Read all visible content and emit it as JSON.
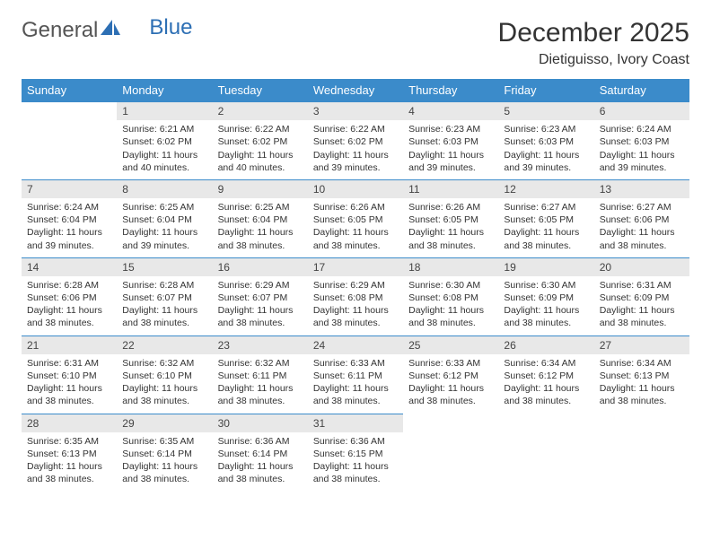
{
  "logo": {
    "general": "General",
    "blue": "Blue"
  },
  "title": "December 2025",
  "location": "Dietiguisso, Ivory Coast",
  "colors": {
    "header_bg": "#3b8bca",
    "header_fg": "#ffffff",
    "daynum_bg": "#e8e8e8",
    "rule": "#3b8bca",
    "text": "#333333",
    "logo_gray": "#555555",
    "logo_blue": "#2d6fb4"
  },
  "weekday_labels": [
    "Sunday",
    "Monday",
    "Tuesday",
    "Wednesday",
    "Thursday",
    "Friday",
    "Saturday"
  ],
  "weeks": [
    [
      {
        "num": "",
        "sunrise": "",
        "sunset": "",
        "daylight": ""
      },
      {
        "num": "1",
        "sunrise": "Sunrise: 6:21 AM",
        "sunset": "Sunset: 6:02 PM",
        "daylight": "Daylight: 11 hours and 40 minutes."
      },
      {
        "num": "2",
        "sunrise": "Sunrise: 6:22 AM",
        "sunset": "Sunset: 6:02 PM",
        "daylight": "Daylight: 11 hours and 40 minutes."
      },
      {
        "num": "3",
        "sunrise": "Sunrise: 6:22 AM",
        "sunset": "Sunset: 6:02 PM",
        "daylight": "Daylight: 11 hours and 39 minutes."
      },
      {
        "num": "4",
        "sunrise": "Sunrise: 6:23 AM",
        "sunset": "Sunset: 6:03 PM",
        "daylight": "Daylight: 11 hours and 39 minutes."
      },
      {
        "num": "5",
        "sunrise": "Sunrise: 6:23 AM",
        "sunset": "Sunset: 6:03 PM",
        "daylight": "Daylight: 11 hours and 39 minutes."
      },
      {
        "num": "6",
        "sunrise": "Sunrise: 6:24 AM",
        "sunset": "Sunset: 6:03 PM",
        "daylight": "Daylight: 11 hours and 39 minutes."
      }
    ],
    [
      {
        "num": "7",
        "sunrise": "Sunrise: 6:24 AM",
        "sunset": "Sunset: 6:04 PM",
        "daylight": "Daylight: 11 hours and 39 minutes."
      },
      {
        "num": "8",
        "sunrise": "Sunrise: 6:25 AM",
        "sunset": "Sunset: 6:04 PM",
        "daylight": "Daylight: 11 hours and 39 minutes."
      },
      {
        "num": "9",
        "sunrise": "Sunrise: 6:25 AM",
        "sunset": "Sunset: 6:04 PM",
        "daylight": "Daylight: 11 hours and 38 minutes."
      },
      {
        "num": "10",
        "sunrise": "Sunrise: 6:26 AM",
        "sunset": "Sunset: 6:05 PM",
        "daylight": "Daylight: 11 hours and 38 minutes."
      },
      {
        "num": "11",
        "sunrise": "Sunrise: 6:26 AM",
        "sunset": "Sunset: 6:05 PM",
        "daylight": "Daylight: 11 hours and 38 minutes."
      },
      {
        "num": "12",
        "sunrise": "Sunrise: 6:27 AM",
        "sunset": "Sunset: 6:05 PM",
        "daylight": "Daylight: 11 hours and 38 minutes."
      },
      {
        "num": "13",
        "sunrise": "Sunrise: 6:27 AM",
        "sunset": "Sunset: 6:06 PM",
        "daylight": "Daylight: 11 hours and 38 minutes."
      }
    ],
    [
      {
        "num": "14",
        "sunrise": "Sunrise: 6:28 AM",
        "sunset": "Sunset: 6:06 PM",
        "daylight": "Daylight: 11 hours and 38 minutes."
      },
      {
        "num": "15",
        "sunrise": "Sunrise: 6:28 AM",
        "sunset": "Sunset: 6:07 PM",
        "daylight": "Daylight: 11 hours and 38 minutes."
      },
      {
        "num": "16",
        "sunrise": "Sunrise: 6:29 AM",
        "sunset": "Sunset: 6:07 PM",
        "daylight": "Daylight: 11 hours and 38 minutes."
      },
      {
        "num": "17",
        "sunrise": "Sunrise: 6:29 AM",
        "sunset": "Sunset: 6:08 PM",
        "daylight": "Daylight: 11 hours and 38 minutes."
      },
      {
        "num": "18",
        "sunrise": "Sunrise: 6:30 AM",
        "sunset": "Sunset: 6:08 PM",
        "daylight": "Daylight: 11 hours and 38 minutes."
      },
      {
        "num": "19",
        "sunrise": "Sunrise: 6:30 AM",
        "sunset": "Sunset: 6:09 PM",
        "daylight": "Daylight: 11 hours and 38 minutes."
      },
      {
        "num": "20",
        "sunrise": "Sunrise: 6:31 AM",
        "sunset": "Sunset: 6:09 PM",
        "daylight": "Daylight: 11 hours and 38 minutes."
      }
    ],
    [
      {
        "num": "21",
        "sunrise": "Sunrise: 6:31 AM",
        "sunset": "Sunset: 6:10 PM",
        "daylight": "Daylight: 11 hours and 38 minutes."
      },
      {
        "num": "22",
        "sunrise": "Sunrise: 6:32 AM",
        "sunset": "Sunset: 6:10 PM",
        "daylight": "Daylight: 11 hours and 38 minutes."
      },
      {
        "num": "23",
        "sunrise": "Sunrise: 6:32 AM",
        "sunset": "Sunset: 6:11 PM",
        "daylight": "Daylight: 11 hours and 38 minutes."
      },
      {
        "num": "24",
        "sunrise": "Sunrise: 6:33 AM",
        "sunset": "Sunset: 6:11 PM",
        "daylight": "Daylight: 11 hours and 38 minutes."
      },
      {
        "num": "25",
        "sunrise": "Sunrise: 6:33 AM",
        "sunset": "Sunset: 6:12 PM",
        "daylight": "Daylight: 11 hours and 38 minutes."
      },
      {
        "num": "26",
        "sunrise": "Sunrise: 6:34 AM",
        "sunset": "Sunset: 6:12 PM",
        "daylight": "Daylight: 11 hours and 38 minutes."
      },
      {
        "num": "27",
        "sunrise": "Sunrise: 6:34 AM",
        "sunset": "Sunset: 6:13 PM",
        "daylight": "Daylight: 11 hours and 38 minutes."
      }
    ],
    [
      {
        "num": "28",
        "sunrise": "Sunrise: 6:35 AM",
        "sunset": "Sunset: 6:13 PM",
        "daylight": "Daylight: 11 hours and 38 minutes."
      },
      {
        "num": "29",
        "sunrise": "Sunrise: 6:35 AM",
        "sunset": "Sunset: 6:14 PM",
        "daylight": "Daylight: 11 hours and 38 minutes."
      },
      {
        "num": "30",
        "sunrise": "Sunrise: 6:36 AM",
        "sunset": "Sunset: 6:14 PM",
        "daylight": "Daylight: 11 hours and 38 minutes."
      },
      {
        "num": "31",
        "sunrise": "Sunrise: 6:36 AM",
        "sunset": "Sunset: 6:15 PM",
        "daylight": "Daylight: 11 hours and 38 minutes."
      },
      {
        "num": "",
        "sunrise": "",
        "sunset": "",
        "daylight": ""
      },
      {
        "num": "",
        "sunrise": "",
        "sunset": "",
        "daylight": ""
      },
      {
        "num": "",
        "sunrise": "",
        "sunset": "",
        "daylight": ""
      }
    ]
  ]
}
